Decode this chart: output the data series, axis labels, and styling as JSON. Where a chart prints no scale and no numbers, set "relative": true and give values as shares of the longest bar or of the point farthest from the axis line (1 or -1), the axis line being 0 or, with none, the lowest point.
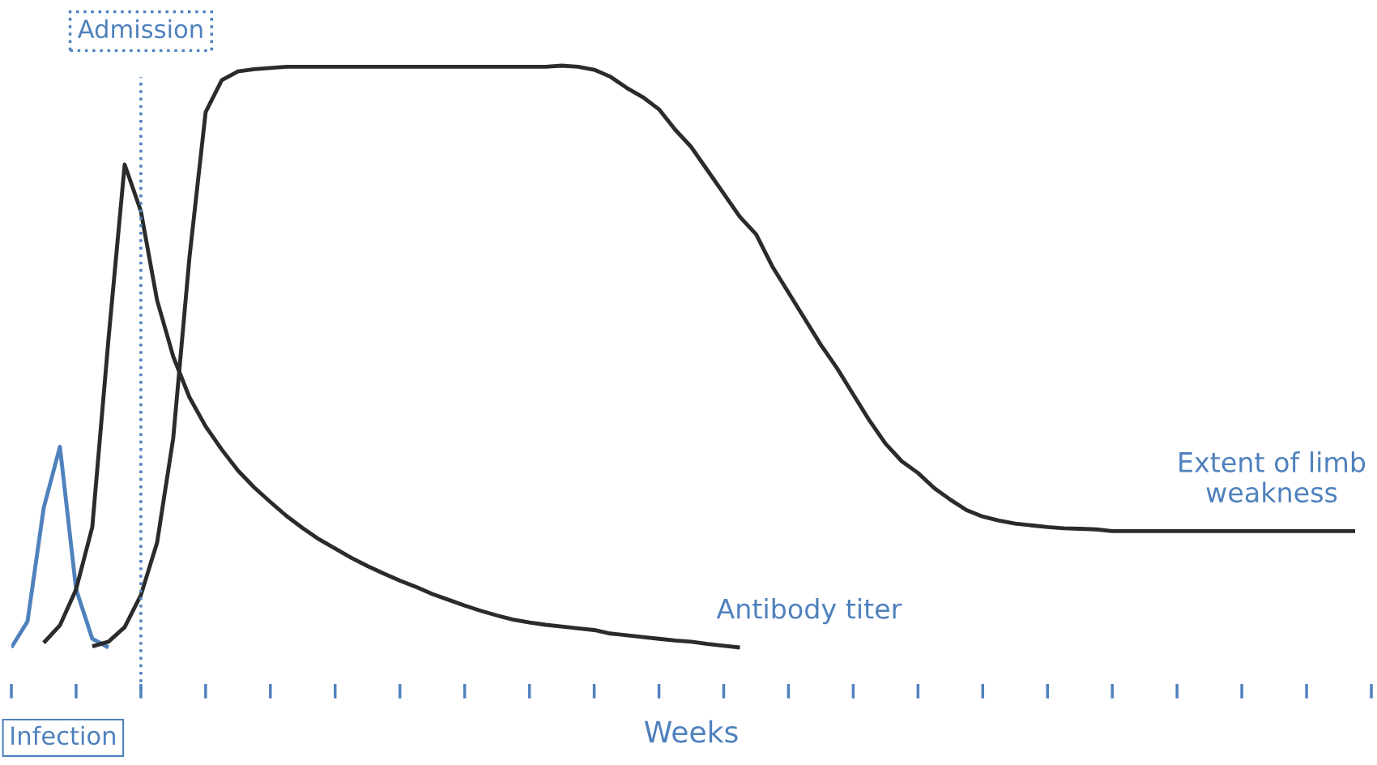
{
  "chart_data": {
    "type": "line",
    "relative": true,
    "xlabel": "Weeks",
    "tick_labels": false,
    "categories": [
      null,
      null,
      null,
      null,
      null,
      null,
      null,
      null,
      null,
      null,
      null,
      null,
      null,
      null,
      null,
      null,
      null,
      null,
      null,
      null,
      null,
      null,
      null,
      null,
      null,
      null,
      null,
      null,
      null,
      null,
      null,
      null,
      null,
      null,
      null,
      null,
      null,
      null,
      null,
      null,
      null,
      null,
      null,
      null,
      null,
      null,
      null,
      null,
      null,
      null,
      null,
      null,
      null,
      null,
      null,
      null,
      null,
      null,
      null,
      null,
      null,
      null,
      null,
      null,
      null,
      null,
      null,
      null,
      null,
      null,
      null,
      null,
      null,
      null,
      null,
      null,
      null,
      null,
      null,
      null,
      null,
      null,
      null,
      null,
      null
    ],
    "series": [
      {
        "color": "#4f81bd",
        "values": [
          0,
          0.045,
          0.24,
          0.345,
          0.1,
          0.015,
          0,
          null,
          null,
          null,
          null,
          null,
          null,
          null,
          null,
          null,
          null,
          null,
          null,
          null,
          null,
          null,
          null,
          null,
          null,
          null,
          null,
          null,
          null,
          null,
          null,
          null,
          null,
          null,
          null,
          null,
          null,
          null,
          null,
          null,
          null,
          null,
          null,
          null,
          null,
          null,
          null,
          null,
          null,
          null,
          null,
          null,
          null,
          null,
          null,
          null,
          null,
          null,
          null,
          null,
          null,
          null,
          null,
          null,
          null,
          null,
          null,
          null,
          null,
          null,
          null,
          null,
          null,
          null,
          null,
          null,
          null,
          null,
          null,
          null,
          null,
          null,
          null,
          null,
          null
        ]
      },
      {
        "name": "Antibody titer",
        "color": "#2b2b2b",
        "values": [
          null,
          null,
          0.008,
          0.038,
          0.1,
          0.207,
          0.53,
          0.83,
          0.75,
          0.597,
          0.5,
          0.43,
          0.38,
          0.34,
          0.304,
          0.275,
          0.25,
          0.226,
          0.205,
          0.186,
          0.17,
          0.154,
          0.14,
          0.127,
          0.115,
          0.104,
          0.092,
          0.082,
          0.072,
          0.063,
          0.055,
          0.048,
          0.043,
          0.039,
          0.036,
          0.033,
          0.03,
          0.024,
          0.021,
          0.018,
          0.015,
          0.012,
          0.01,
          0.006,
          0.003,
          0,
          null,
          null,
          null,
          null,
          null,
          null,
          null,
          null,
          null,
          null,
          null,
          null,
          null,
          null,
          null,
          null,
          null,
          null,
          null,
          null,
          null,
          null,
          null,
          null,
          null,
          null,
          null,
          null,
          null,
          null,
          null,
          null,
          null,
          null,
          null,
          null,
          null,
          null,
          null
        ]
      },
      {
        "name": "Extent of limb\nweakness",
        "color": "#2b2b2b",
        "values": [
          null,
          null,
          null,
          null,
          null,
          0.002,
          0.01,
          0.035,
          0.09,
          0.18,
          0.36,
          0.67,
          0.92,
          0.975,
          0.99,
          0.994,
          0.996,
          0.998,
          0.998,
          0.998,
          0.998,
          0.998,
          0.998,
          0.998,
          0.998,
          0.998,
          0.998,
          0.998,
          0.998,
          0.998,
          0.998,
          0.998,
          0.998,
          0.998,
          1,
          0.998,
          0.993,
          0.981,
          0.962,
          0.946,
          0.925,
          0.89,
          0.86,
          0.82,
          0.78,
          0.74,
          0.71,
          0.655,
          0.61,
          0.565,
          0.52,
          0.48,
          0.435,
          0.39,
          0.35,
          0.32,
          0.3,
          0.274,
          0.254,
          0.236,
          0.225,
          0.218,
          0.213,
          0.21,
          0.207,
          0.205,
          0.204,
          0.203,
          0.2,
          0.2,
          0.2,
          0.2,
          0.2,
          0.2,
          0.2,
          0.2,
          0.2,
          0.2,
          0.2,
          0.2,
          0.2,
          0.2,
          0.2,
          0.2,
          null
        ]
      }
    ],
    "annotations": [
      "Admission",
      "Infection"
    ],
    "line_style": "solid",
    "marker": "none",
    "grid": false,
    "legend": false
  }
}
